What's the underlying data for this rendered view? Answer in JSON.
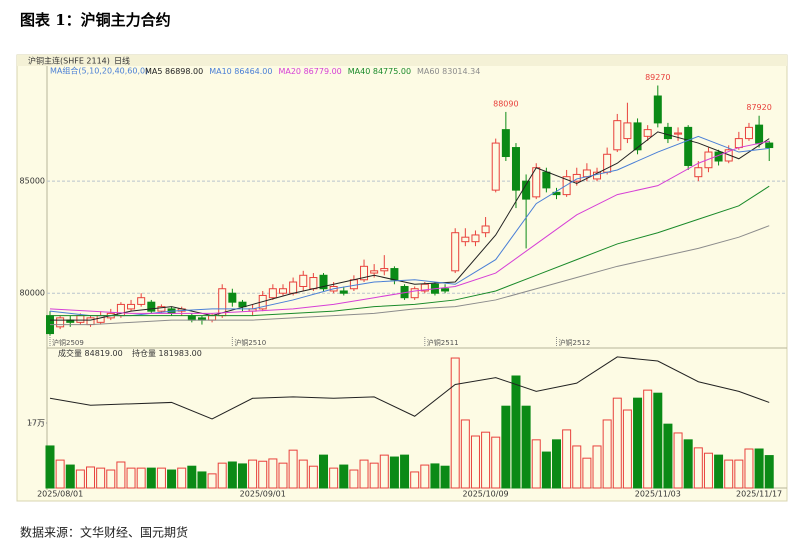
{
  "title": "图表 1：沪铜主力合约",
  "source": "数据来源：文华财经、国元期货",
  "chart_data": [
    {
      "type": "candlestick",
      "header": "沪铜主连(SHFE 2114)",
      "period": "日线",
      "legend_title": "MA组合(5,10,20,40,60,0)",
      "up_color": "#e8413c",
      "down_color": "#0b8a16",
      "ylim": [
        77600,
        90050
      ],
      "yticks": [
        80000,
        85000
      ],
      "grid": true,
      "candles": {
        "open": [
          79000,
          78500,
          78800,
          78700,
          78600,
          78700,
          78900,
          79000,
          79300,
          79500,
          79600,
          79200,
          79300,
          79200,
          79000,
          78900,
          78800,
          79000,
          80000,
          79600,
          79200,
          79300,
          79800,
          80000,
          80000,
          80300,
          80200,
          80800,
          80100,
          80100,
          80200,
          80600,
          80900,
          81000,
          81100,
          80300,
          79800,
          80100,
          80400,
          80200,
          81000,
          82300,
          82300,
          82700,
          84600,
          87300,
          86500,
          85000,
          84300,
          85400,
          84500,
          84400,
          85000,
          85200,
          85100,
          85400,
          86400,
          86900,
          87600,
          87000,
          88800,
          87400,
          87100,
          87400,
          85200,
          85600,
          86300,
          85900,
          86500,
          86900,
          87500,
          86700
        ],
        "high": [
          79200,
          79000,
          79000,
          79100,
          79000,
          79200,
          79300,
          79600,
          79700,
          80000,
          79700,
          79500,
          79400,
          79400,
          79100,
          79000,
          79100,
          80400,
          80200,
          79700,
          79500,
          80100,
          80400,
          80400,
          80700,
          81000,
          80900,
          80900,
          80500,
          80300,
          80800,
          81500,
          81300,
          81700,
          81200,
          80400,
          80300,
          80500,
          80500,
          80400,
          82900,
          82900,
          82800,
          83400,
          86900,
          88090,
          86700,
          85300,
          85800,
          85600,
          84700,
          85500,
          85600,
          85800,
          85600,
          86500,
          88000,
          88500,
          87800,
          87500,
          89270,
          87600,
          87400,
          87500,
          85900,
          86500,
          86400,
          86600,
          87200,
          87600,
          87920,
          86800
        ],
        "low": [
          78100,
          78400,
          78500,
          78600,
          78500,
          78600,
          78800,
          78900,
          79200,
          79400,
          79100,
          79100,
          79000,
          79000,
          78700,
          78600,
          78700,
          78900,
          79400,
          79200,
          79000,
          79200,
          79700,
          79900,
          79900,
          80100,
          80100,
          80100,
          80000,
          79900,
          80100,
          80500,
          80700,
          80800,
          80400,
          79700,
          79700,
          80000,
          79900,
          80000,
          80900,
          82100,
          82100,
          82500,
          84500,
          85900,
          83800,
          82000,
          84200,
          84500,
          84200,
          84300,
          84800,
          85000,
          85000,
          85300,
          86300,
          86700,
          86200,
          86800,
          87400,
          86700,
          86800,
          85500,
          85000,
          85400,
          85700,
          85800,
          86400,
          86800,
          86500,
          85900
        ],
        "close": [
          78200,
          78900,
          78700,
          79000,
          78900,
          79000,
          79100,
          79500,
          79500,
          79800,
          79200,
          79400,
          79100,
          79300,
          78800,
          78800,
          79000,
          80200,
          79600,
          79400,
          79300,
          79900,
          80200,
          80200,
          80500,
          80800,
          80700,
          80200,
          80300,
          80000,
          80600,
          81200,
          81000,
          81100,
          80600,
          79800,
          80200,
          80400,
          80000,
          80100,
          82700,
          82500,
          82600,
          83000,
          86700,
          86100,
          84600,
          84200,
          85600,
          84700,
          84400,
          85200,
          85300,
          85500,
          85400,
          86200,
          87700,
          87600,
          86400,
          87300,
          87600,
          86900,
          87150,
          85700,
          85600,
          86300,
          85900,
          86400,
          86900,
          87400,
          86700,
          86500
        ]
      },
      "high_labels": [
        {
          "index": 45,
          "value": 88090
        },
        {
          "index": 60,
          "value": 89270
        },
        {
          "index": 70,
          "value": 87920
        }
      ],
      "contracts": [
        {
          "label": "沪铜2509",
          "index": 0
        },
        {
          "label": "沪铜2510",
          "index": 18
        },
        {
          "label": "沪铜2511",
          "index": 37
        },
        {
          "label": "沪铜2512",
          "index": 50
        }
      ],
      "ma_series": [
        {
          "name": "MA5",
          "value_label": "86898.00",
          "color": "#222222",
          "x": [
            0,
            4,
            8,
            12,
            16,
            20,
            24,
            28,
            32,
            36,
            40,
            44,
            48,
            52,
            56,
            60,
            64,
            68,
            71
          ],
          "values": [
            78800,
            78800,
            79200,
            79400,
            79000,
            79500,
            80000,
            80400,
            80800,
            80400,
            80500,
            82600,
            85600,
            84900,
            85800,
            87200,
            86700,
            86000,
            86898
          ]
        },
        {
          "name": "MA10",
          "value_label": "86464.00",
          "color": "#4a7fd6",
          "x": [
            0,
            4,
            8,
            12,
            16,
            20,
            24,
            28,
            32,
            36,
            40,
            44,
            48,
            52,
            56,
            60,
            64,
            68,
            71
          ],
          "values": [
            79200,
            79000,
            79000,
            79200,
            79300,
            79300,
            79700,
            80200,
            80500,
            80600,
            80400,
            81500,
            84000,
            85100,
            85500,
            86300,
            87000,
            86300,
            86464
          ]
        },
        {
          "name": "MA20",
          "value_label": "86779.00",
          "color": "#d63fd6",
          "x": [
            0,
            4,
            8,
            12,
            16,
            20,
            24,
            28,
            32,
            36,
            40,
            44,
            48,
            52,
            56,
            60,
            64,
            68,
            71
          ],
          "values": [
            79300,
            79200,
            79100,
            79100,
            79100,
            79200,
            79300,
            79500,
            79800,
            80100,
            80300,
            80900,
            82200,
            83500,
            84400,
            84800,
            85800,
            86500,
            86779
          ]
        },
        {
          "name": "MA40",
          "value_label": "84775.00",
          "color": "#1a8a2a",
          "x": [
            0,
            4,
            8,
            12,
            16,
            20,
            24,
            28,
            32,
            36,
            40,
            44,
            48,
            52,
            56,
            60,
            64,
            68,
            71
          ],
          "values": [
            79000,
            79000,
            79000,
            79000,
            79000,
            79000,
            79100,
            79200,
            79400,
            79500,
            79700,
            80100,
            80800,
            81500,
            82200,
            82700,
            83300,
            83900,
            84775
          ]
        },
        {
          "name": "MA60",
          "value_label": "83014.34",
          "color": "#8c8c8c",
          "x": [
            0,
            4,
            8,
            12,
            16,
            20,
            24,
            28,
            32,
            36,
            40,
            44,
            48,
            52,
            56,
            60,
            64,
            68,
            71
          ],
          "values": [
            78600,
            78600,
            78700,
            78800,
            78800,
            78800,
            78900,
            79000,
            79100,
            79300,
            79400,
            79700,
            80200,
            80700,
            81200,
            81600,
            82000,
            82500,
            83014.34
          ]
        }
      ]
    },
    {
      "type": "bar",
      "categories": [
        null,
        "2025/08/01",
        null,
        null,
        null,
        null,
        null,
        null,
        null,
        null,
        null,
        null,
        null,
        null,
        null,
        null,
        null,
        null,
        null,
        null,
        null,
        "2025/09/01",
        null,
        null,
        null,
        null,
        null,
        null,
        null,
        null,
        null,
        null,
        null,
        null,
        null,
        null,
        null,
        null,
        null,
        null,
        null,
        null,
        null,
        "2025/10/09",
        null,
        null,
        null,
        null,
        null,
        null,
        null,
        null,
        null,
        null,
        null,
        null,
        null,
        null,
        null,
        null,
        "2025/11/03",
        null,
        null,
        null,
        null,
        null,
        null,
        null,
        null,
        null,
        "2025/11/17",
        null
      ],
      "ylim": [
        0,
        361000
      ],
      "yticks": [
        {
          "value": 170000,
          "label": "17万"
        }
      ],
      "y2lim": [
        120000,
        220000
      ],
      "series": [
        {
          "name": "成交量",
          "value_label": "84819.00",
          "values": [
            110000,
            73000,
            60000,
            47000,
            55000,
            52000,
            47000,
            68000,
            52000,
            52000,
            52000,
            52000,
            47000,
            52000,
            57000,
            42000,
            37000,
            65000,
            68000,
            63000,
            73000,
            70000,
            76000,
            65000,
            99000,
            73000,
            57000,
            86000,
            52000,
            60000,
            47000,
            73000,
            65000,
            86000,
            81000,
            86000,
            42000,
            60000,
            63000,
            57000,
            340000,
            178000,
            136000,
            146000,
            133000,
            214000,
            293000,
            214000,
            126000,
            94000,
            126000,
            152000,
            110000,
            78000,
            110000,
            178000,
            235000,
            204000,
            235000,
            256000,
            248000,
            167000,
            144000,
            126000,
            105000,
            91000,
            86000,
            73000,
            73000,
            102000,
            102000,
            84819
          ]
        },
        {
          "name": "持仓量",
          "value_label": "181983.00",
          "axis": "y2",
          "color": "#222222",
          "x": [
            0,
            4,
            8,
            12,
            16,
            20,
            24,
            28,
            32,
            36,
            40,
            44,
            48,
            52,
            56,
            60,
            64,
            68,
            71
          ],
          "values": [
            185000,
            180000,
            181000,
            182000,
            170000,
            185000,
            186000,
            185000,
            186000,
            172000,
            195000,
            200000,
            190000,
            196000,
            215000,
            212000,
            197000,
            190000,
            181983
          ]
        }
      ]
    }
  ]
}
